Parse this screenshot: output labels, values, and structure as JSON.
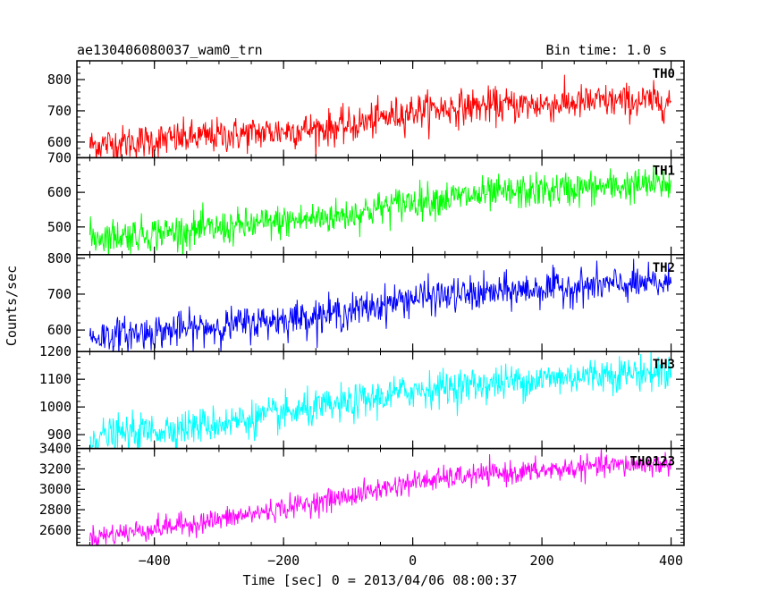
{
  "header": {
    "left_title": "ae130406080037_wam0_trn",
    "right_title": "Bin time: 1.0 s"
  },
  "chart_data": {
    "type": "line",
    "title": "ae130406080037_wam0_trn",
    "subtitle": "Bin time: 1.0 s",
    "xlabel": "Time [sec] 0 = 2013/04/06 08:00:37",
    "ylabel": "Counts/sec",
    "xlim": [
      -520,
      420
    ],
    "x_ticks": [
      -400,
      -200,
      0,
      200,
      400
    ],
    "x_tick_labels": [
      "−400",
      "−200",
      "0",
      "200",
      "400"
    ],
    "data_x_range": [
      -500,
      400
    ],
    "bin_time_s": 1.0,
    "grid": false,
    "legend": "none",
    "panels": [
      {
        "name": "TH0",
        "color": "#ff0000",
        "ylim": [
          550,
          860
        ],
        "y_ticks": [
          600,
          700,
          800
        ],
        "y_tick_labels": [
          "600",
          "700",
          "800"
        ],
        "trend": {
          "x": [
            -500,
            -300,
            -100,
            0,
            100,
            200,
            300,
            400
          ],
          "y": [
            590,
            620,
            650,
            700,
            715,
            720,
            730,
            730
          ]
        },
        "noise_sigma": 28
      },
      {
        "name": "TH1",
        "color": "#00ff00",
        "ylim": [
          420,
          700
        ],
        "y_ticks": [
          500,
          600,
          700
        ],
        "y_tick_labels": [
          "500",
          "600",
          "700"
        ],
        "trend": {
          "x": [
            -500,
            -300,
            -100,
            0,
            100,
            200,
            300,
            400
          ],
          "y": [
            470,
            495,
            535,
            575,
            590,
            605,
            615,
            625
          ]
        },
        "noise_sigma": 25
      },
      {
        "name": "TH2",
        "color": "#0000ff",
        "ylim": [
          540,
          810
        ],
        "y_ticks": [
          600,
          700,
          800
        ],
        "y_tick_labels": [
          "600",
          "700",
          "800"
        ],
        "trend": {
          "x": [
            -500,
            -300,
            -100,
            0,
            100,
            200,
            300,
            400
          ],
          "y": [
            580,
            610,
            650,
            690,
            700,
            715,
            725,
            730
          ]
        },
        "noise_sigma": 24
      },
      {
        "name": "TH3",
        "color": "#00ffff",
        "ylim": [
          850,
          1200
        ],
        "y_ticks": [
          900,
          1000,
          1100,
          1200
        ],
        "y_tick_labels": [
          "900",
          "1000",
          "1100",
          "1200"
        ],
        "trend": {
          "x": [
            -500,
            -300,
            -100,
            0,
            100,
            200,
            300,
            400
          ],
          "y": [
            890,
            940,
            1010,
            1060,
            1080,
            1100,
            1120,
            1125
          ]
        },
        "noise_sigma": 32
      },
      {
        "name": "TH0123",
        "color": "#ff00ff",
        "ylim": [
          2450,
          3400
        ],
        "y_ticks": [
          2600,
          2800,
          3000,
          3200,
          3400
        ],
        "y_tick_labels": [
          "2600",
          "2800",
          "3000",
          "3200",
          "3400"
        ],
        "trend": {
          "x": [
            -500,
            -300,
            -100,
            0,
            100,
            200,
            300,
            400
          ],
          "y": [
            2530,
            2700,
            2930,
            3070,
            3140,
            3180,
            3230,
            3250
          ]
        },
        "noise_sigma": 55
      }
    ]
  }
}
